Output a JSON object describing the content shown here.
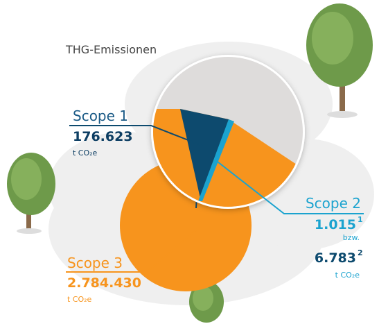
{
  "title": "THG-Emissionen",
  "scope1": {
    "label": "Scope 1",
    "value": "176.623",
    "unit": "t CO₂e"
  },
  "scope2": {
    "label": "Scope 2",
    "value": "1.015",
    "value_note": "1",
    "separator": "bzw.",
    "alt_value": "6.783",
    "alt_value_note": "2",
    "unit": "t CO₂e"
  },
  "scope3": {
    "label": "Scope 3",
    "value": "2.784.430",
    "unit": "t CO₂e"
  }
}
